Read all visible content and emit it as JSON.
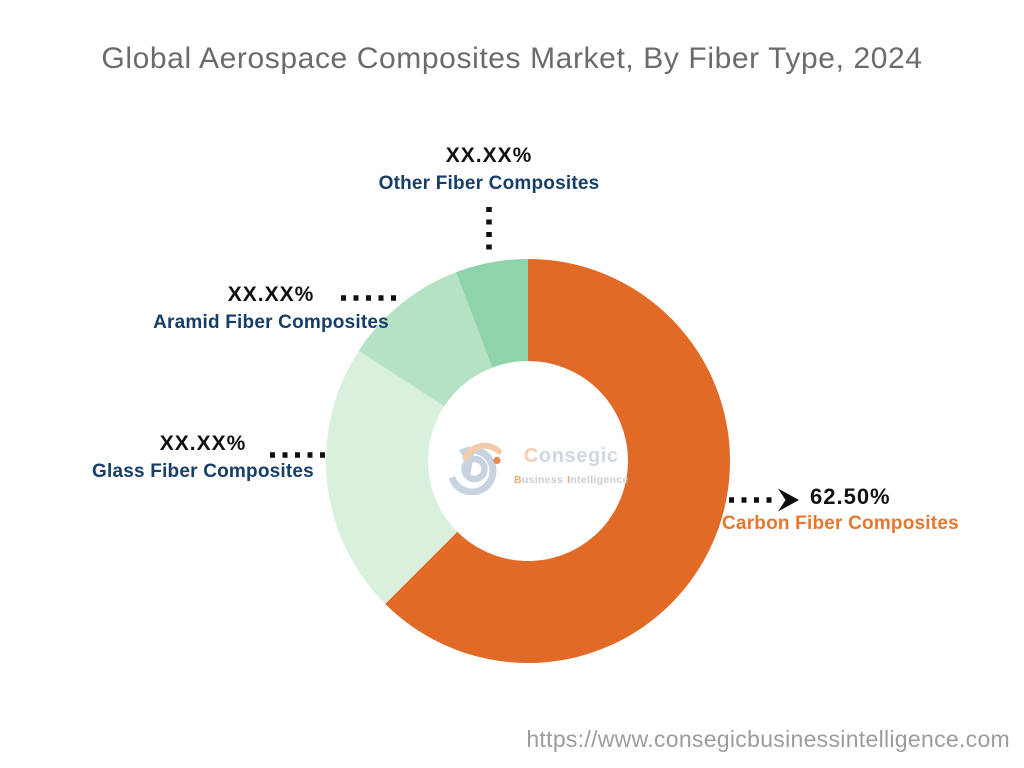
{
  "title": "Global Aerospace Composites Market, By Fiber Type, 2024",
  "source_url": "https://www.consegicbusinessintelligence.com",
  "watermark": {
    "brand": "Consegic",
    "tagline_word1": "Business",
    "tagline_word2": "Intelligence"
  },
  "chart_data": {
    "type": "pie",
    "subtype": "donut",
    "title": "Global Aerospace Composites Market, By Fiber Type, 2024",
    "unit": "%",
    "direction": "clockwise",
    "start_angle_deg_from_top": 0,
    "legend_position": "callouts",
    "series": [
      {
        "name": "Carbon Fiber Composites",
        "value": 62.5,
        "display_value": "62.50%",
        "color": "#E06A26",
        "name_color": "#E8762E"
      },
      {
        "name": "Glass Fiber Composites",
        "value": 21.7,
        "display_value": "XX.XX%",
        "color": "#D8F0DC",
        "name_color": "#153E68"
      },
      {
        "name": "Aramid Fiber Composites",
        "value": 10.0,
        "display_value": "XX.XX%",
        "color": "#B5E1C5",
        "name_color": "#153E68"
      },
      {
        "name": "Other Fiber Composites",
        "value": 5.8,
        "display_value": "XX.XX%",
        "color": "#8FD3AB",
        "name_color": "#153E68"
      }
    ]
  },
  "leader_color": "#0F0F0F"
}
